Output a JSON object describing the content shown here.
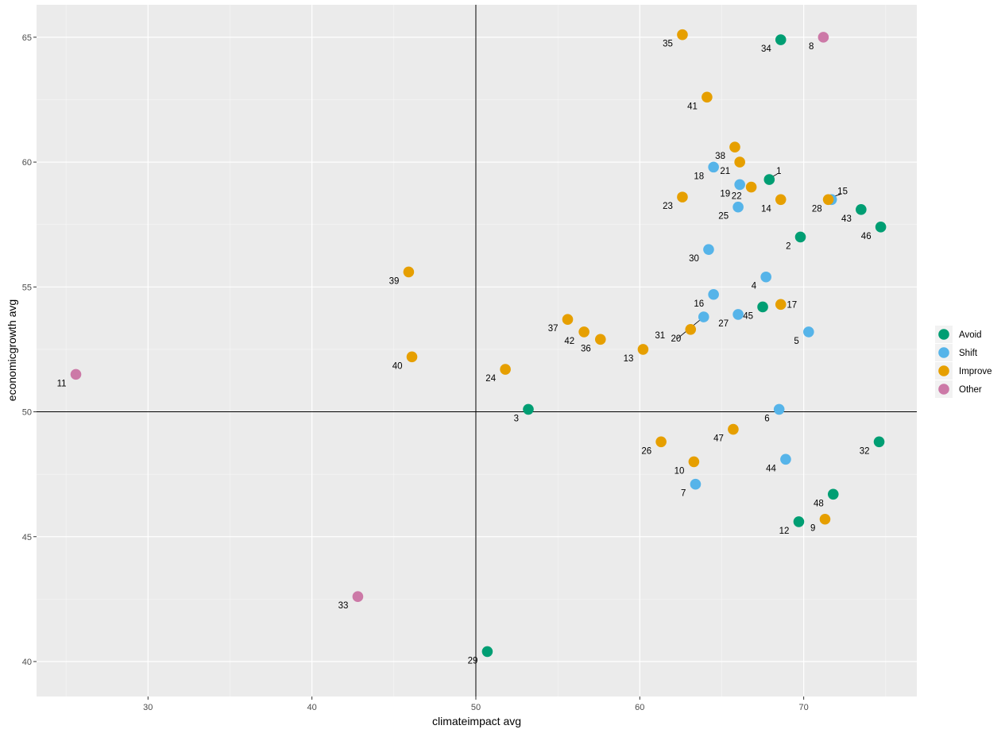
{
  "chart_data": {
    "type": "scatter",
    "xlabel": "climateimpact avg",
    "ylabel": "economicgrowth avg",
    "xlim": [
      23.2,
      76.9
    ],
    "ylim": [
      38.6,
      66.3
    ],
    "xticks": [
      30,
      40,
      50,
      60,
      70
    ],
    "yticks": [
      40,
      45,
      50,
      55,
      60,
      65
    ],
    "reference_lines": {
      "x": 50,
      "y": 50
    },
    "grid": true,
    "legend_position": "right",
    "series": [
      {
        "name": "Avoid",
        "color": "#009E73",
        "points": [
          {
            "label": "1",
            "x": 67.9,
            "y": 59.3
          },
          {
            "label": "2",
            "x": 69.8,
            "y": 57.0
          },
          {
            "label": "3",
            "x": 53.2,
            "y": 50.1
          },
          {
            "label": "12",
            "x": 69.7,
            "y": 45.6
          },
          {
            "label": "29",
            "x": 50.7,
            "y": 40.4
          },
          {
            "label": "32",
            "x": 74.6,
            "y": 48.8
          },
          {
            "label": "34",
            "x": 68.6,
            "y": 64.9
          },
          {
            "label": "43",
            "x": 73.5,
            "y": 58.1
          },
          {
            "label": "45",
            "x": 67.5,
            "y": 54.2
          },
          {
            "label": "46",
            "x": 74.7,
            "y": 57.4
          },
          {
            "label": "48",
            "x": 71.8,
            "y": 46.7
          }
        ]
      },
      {
        "name": "Shift",
        "color": "#56B4E9",
        "points": [
          {
            "label": "4",
            "x": 67.7,
            "y": 55.4
          },
          {
            "label": "5",
            "x": 70.3,
            "y": 53.2
          },
          {
            "label": "6",
            "x": 68.5,
            "y": 50.1
          },
          {
            "label": "7",
            "x": 63.4,
            "y": 47.1
          },
          {
            "label": "16",
            "x": 64.5,
            "y": 54.7
          },
          {
            "label": "18",
            "x": 64.5,
            "y": 59.8
          },
          {
            "label": "19",
            "x": 66.1,
            "y": 59.1
          },
          {
            "label": "25",
            "x": 66.0,
            "y": 58.2
          },
          {
            "label": "27",
            "x": 66.0,
            "y": 53.9
          },
          {
            "label": "28",
            "x": 71.7,
            "y": 58.5
          },
          {
            "label": "30",
            "x": 64.2,
            "y": 56.5
          },
          {
            "label": "31",
            "x": 63.9,
            "y": 53.8
          },
          {
            "label": "44",
            "x": 68.9,
            "y": 48.1
          }
        ]
      },
      {
        "name": "Improve",
        "color": "#E69F00",
        "points": [
          {
            "label": "9",
            "x": 71.3,
            "y": 45.7
          },
          {
            "label": "10",
            "x": 63.3,
            "y": 48.0
          },
          {
            "label": "13",
            "x": 60.2,
            "y": 52.5
          },
          {
            "label": "14",
            "x": 68.6,
            "y": 58.5
          },
          {
            "label": "15",
            "x": 71.5,
            "y": 58.5
          },
          {
            "label": "17",
            "x": 68.6,
            "y": 54.3
          },
          {
            "label": "20",
            "x": 63.1,
            "y": 53.3
          },
          {
            "label": "21",
            "x": 66.1,
            "y": 60.0
          },
          {
            "label": "22",
            "x": 66.8,
            "y": 59.0
          },
          {
            "label": "23",
            "x": 62.6,
            "y": 58.6
          },
          {
            "label": "24",
            "x": 51.8,
            "y": 51.7
          },
          {
            "label": "26",
            "x": 61.3,
            "y": 48.8
          },
          {
            "label": "35",
            "x": 62.6,
            "y": 65.1
          },
          {
            "label": "36",
            "x": 57.6,
            "y": 52.9
          },
          {
            "label": "37",
            "x": 55.6,
            "y": 53.7
          },
          {
            "label": "38",
            "x": 65.8,
            "y": 60.6
          },
          {
            "label": "39",
            "x": 45.9,
            "y": 55.6
          },
          {
            "label": "40",
            "x": 46.1,
            "y": 52.2
          },
          {
            "label": "41",
            "x": 64.1,
            "y": 62.6
          },
          {
            "label": "42",
            "x": 56.6,
            "y": 53.2
          },
          {
            "label": "47",
            "x": 65.7,
            "y": 49.3
          }
        ]
      },
      {
        "name": "Other",
        "color": "#CC79A7",
        "points": [
          {
            "label": "8",
            "x": 71.2,
            "y": 65.0
          },
          {
            "label": "11",
            "x": 25.6,
            "y": 51.5
          },
          {
            "label": "33",
            "x": 42.8,
            "y": 42.6
          }
        ]
      }
    ]
  }
}
